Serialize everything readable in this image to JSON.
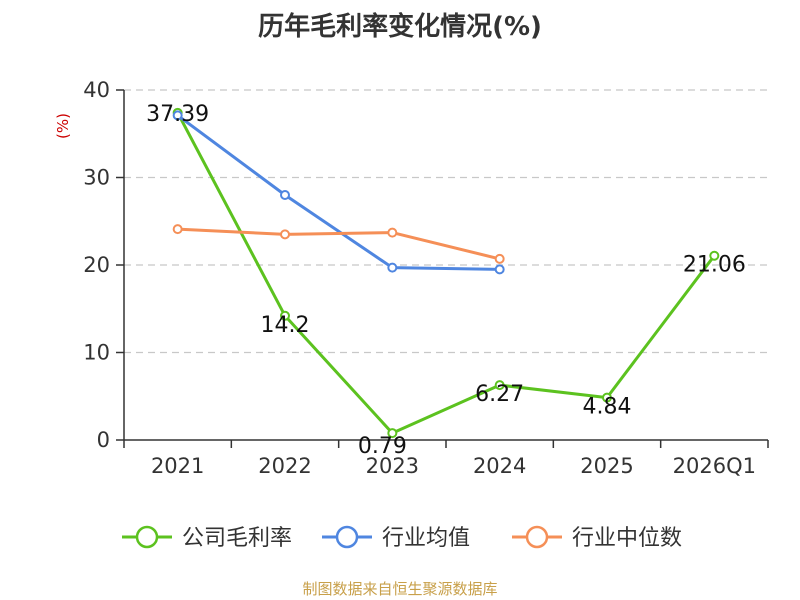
{
  "title": "历年毛利率变化情况(%)",
  "source": "制图数据来自恒生聚源数据库",
  "chart_data": {
    "type": "line",
    "categories": [
      "2021",
      "2022",
      "2023",
      "2024",
      "2025",
      "2026Q1"
    ],
    "ylabel": "(%)",
    "ylim": [
      0,
      40
    ],
    "yticks": [
      0,
      10,
      20,
      30,
      40
    ],
    "grid": true,
    "legend_position": "bottom",
    "series": [
      {
        "name": "公司毛利率",
        "color": "#5cc21f",
        "values": [
          37.39,
          14.2,
          0.79,
          6.27,
          4.84,
          21.06
        ],
        "labels": [
          "37.39",
          "14.2",
          "0.79",
          "6.27",
          "4.84",
          "21.06"
        ]
      },
      {
        "name": "行业均值",
        "color": "#4f86e0",
        "values": [
          37.1,
          28.0,
          19.7,
          19.5,
          null,
          null
        ]
      },
      {
        "name": "行业中位数",
        "color": "#f58f57",
        "values": [
          24.1,
          23.5,
          23.7,
          20.7,
          null,
          null
        ]
      }
    ]
  }
}
